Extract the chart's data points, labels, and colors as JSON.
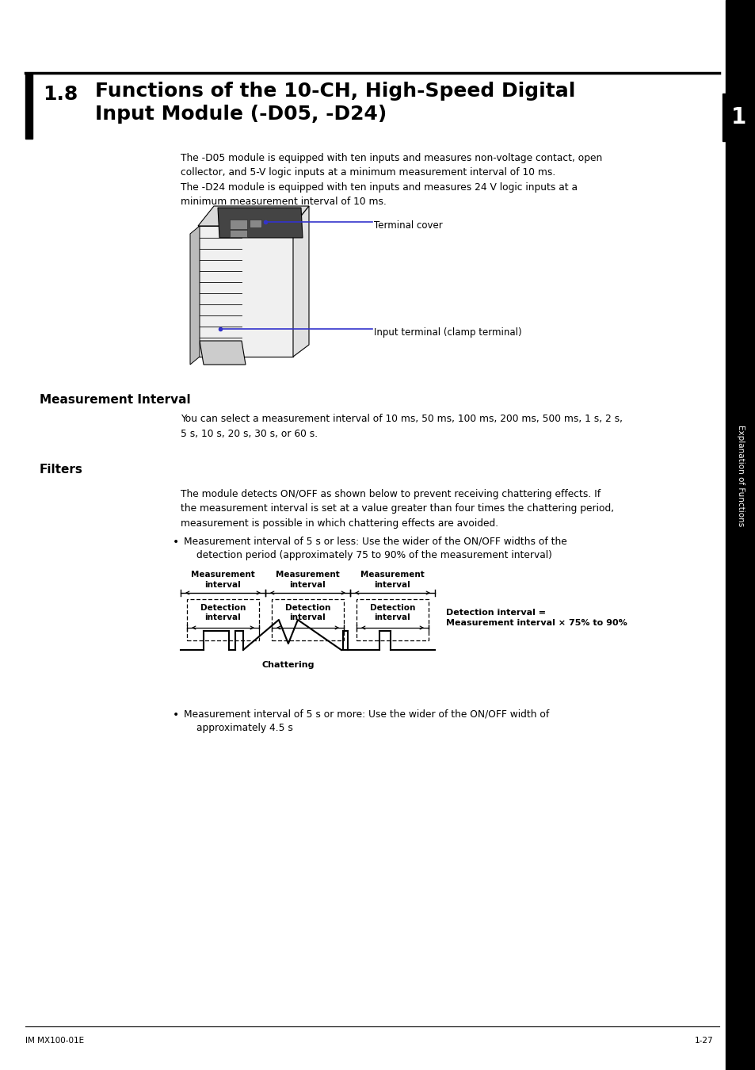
{
  "title_number": "1.8",
  "title_text": "Functions of the 10-CH, High-Speed Digital\nInput Module (-D05, -D24)",
  "section_tab": "1",
  "sidebar_text": "Explanation of Functions",
  "body_text_1": "The -D05 module is equipped with ten inputs and measures non-voltage contact, open\ncollector, and 5-V logic inputs at a minimum measurement interval of 10 ms.\nThe -D24 module is equipped with ten inputs and measures 24 V logic inputs at a\nminimum measurement interval of 10 ms.",
  "label_terminal_cover": "Terminal cover",
  "label_input_terminal": "Input terminal (clamp terminal)",
  "section1_title": "Measurement Interval",
  "section1_text": "You can select a measurement interval of 10 ms, 50 ms, 100 ms, 200 ms, 500 ms, 1 s, 2 s,\n5 s, 10 s, 20 s, 30 s, or 60 s.",
  "section2_title": "Filters",
  "section2_text": "The module detects ON/OFF as shown below to prevent receiving chattering effects. If\nthe measurement interval is set at a value greater than four times the chattering period,\nmeasurement is possible in which chattering effects are avoided.",
  "bullet1_line1": "Measurement interval of 5 s or less: Use the wider of the ON/OFF widths of the",
  "bullet1_line2": "detection period (approximately 75 to 90% of the measurement interval)",
  "bullet2_line1": "Measurement interval of 5 s or more: Use the wider of the ON/OFF width of",
  "bullet2_line2": "approximately 4.5 s",
  "diagram_label1": "Detection interval =\nMeasurement interval × 75% to 90%",
  "diagram_chattering": "Chattering",
  "footer_left": "IM MX100-01E",
  "footer_right": "1-27",
  "bg_color": "#ffffff",
  "text_color": "#000000",
  "sidebar_bg": "#000000",
  "blue_line_color": "#3333cc"
}
